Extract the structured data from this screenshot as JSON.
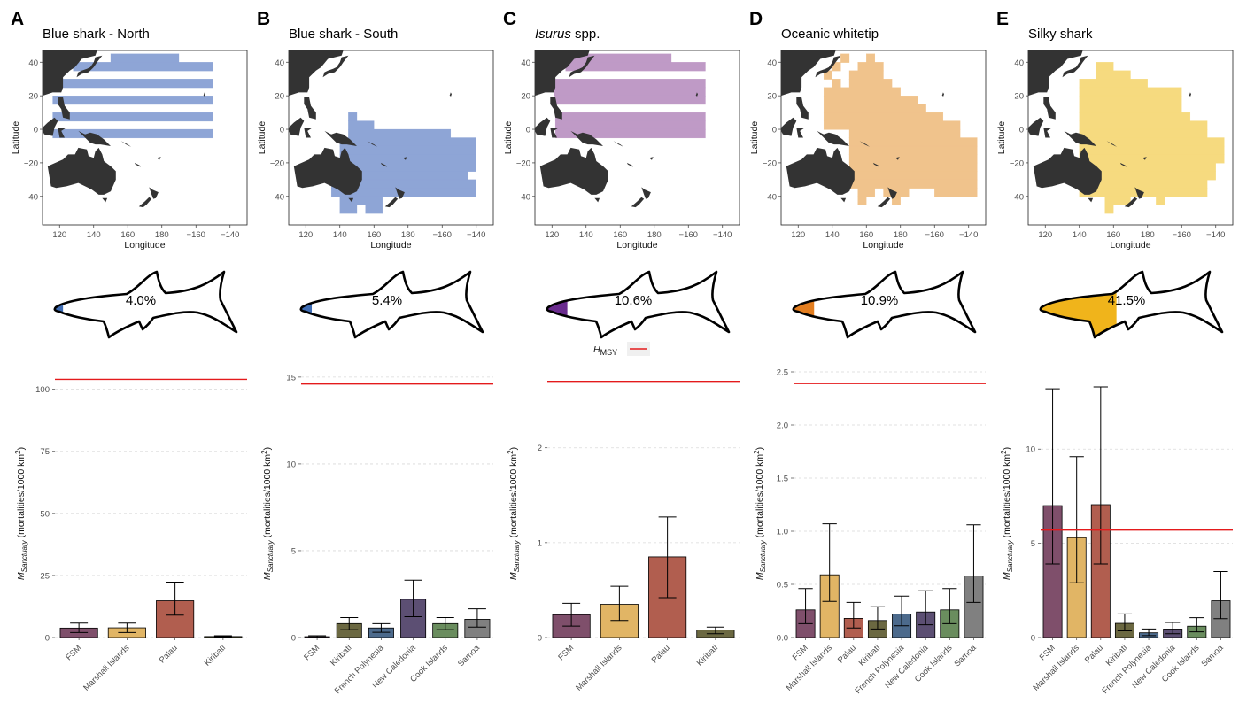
{
  "colors": {
    "land": "#333333",
    "blue": "#8ea5d6",
    "purple": "#bf9ac6",
    "orange": "#f0c38c",
    "gold": "#f6da7f",
    "hmsy": "#e41a1c",
    "fill_blue": "#3f6db5",
    "fill_purple": "#6a2c8e",
    "fill_orange": "#e27d1f",
    "fill_gold": "#f0b41b",
    "FSM": "#7f4f6b",
    "Marshall Islands": "#e1b565",
    "Palau": "#b15e4f",
    "Kiribati": "#6b6841",
    "French Polynesia": "#4c6a8c",
    "New Caledonia": "#5c4f73",
    "Cook Islands": "#6a8d5e",
    "Samoa": "#808080"
  },
  "legend": {
    "label_main": "H",
    "label_sub": "MSY"
  },
  "map_axes": {
    "xlabel": "Longitude",
    "ylabel": "Latitude",
    "x_ticks": [
      "120",
      "140",
      "160",
      "180",
      "−160",
      "−140"
    ],
    "y_ticks": [
      "40",
      "20",
      "0",
      "−20",
      "−40"
    ]
  },
  "y_axis_label": {
    "main": "M",
    "sub": "Sanctuary",
    "rest": " (mortalities/1000 km",
    "sup": "2",
    "close": ")"
  },
  "panels": [
    {
      "letter": "A",
      "title": "Blue shark - North",
      "title_italic": "",
      "title_rest": "",
      "map_color": "blue",
      "shark_fill": "fill_blue",
      "shark_fill_fraction": 0.04,
      "percentage": "4.0%",
      "chart_data": {
        "type": "bar",
        "categories": [
          "FSM",
          "Marshall Islands",
          "Palau",
          "Kiribati"
        ],
        "values": [
          3.8,
          3.9,
          14.8,
          0.4
        ],
        "err_low": [
          2.0,
          2.0,
          9.0,
          0.2
        ],
        "err_high": [
          5.8,
          5.8,
          22.3,
          0.7
        ],
        "hmsy": 104,
        "ylim": [
          0,
          107
        ],
        "y_ticks": [
          0,
          25,
          50,
          75,
          100
        ]
      }
    },
    {
      "letter": "B",
      "title": "Blue shark - South",
      "title_italic": "",
      "title_rest": "",
      "map_color": "blue",
      "shark_fill": "fill_blue",
      "shark_fill_fraction": 0.054,
      "percentage": "5.4%",
      "chart_data": {
        "type": "bar",
        "categories": [
          "FSM",
          "Kiribati",
          "French Polynesia",
          "New Caledonia",
          "Cook Islands",
          "Samoa"
        ],
        "values": [
          0.05,
          0.8,
          0.55,
          2.2,
          0.8,
          1.05
        ],
        "err_low": [
          0.0,
          0.45,
          0.3,
          1.2,
          0.45,
          0.6
        ],
        "err_high": [
          0.1,
          1.15,
          0.8,
          3.3,
          1.15,
          1.65
        ],
        "hmsy": 14.6,
        "ylim": [
          0,
          15.3
        ],
        "y_ticks": [
          0,
          5,
          10,
          15
        ]
      }
    },
    {
      "letter": "C",
      "title": "",
      "title_italic": "Isurus",
      "title_rest": " spp.",
      "map_color": "purple",
      "shark_fill": "fill_purple",
      "shark_fill_fraction": 0.106,
      "percentage": "10.6%",
      "chart_data": {
        "type": "bar",
        "categories": [
          "FSM",
          "Marshall Islands",
          "Palau",
          "Kiribati"
        ],
        "values": [
          0.24,
          0.35,
          0.85,
          0.08
        ],
        "err_low": [
          0.12,
          0.18,
          0.42,
          0.04
        ],
        "err_high": [
          0.36,
          0.54,
          1.27,
          0.11
        ],
        "hmsy": 2.7,
        "ylim": [
          0,
          2.8
        ],
        "y_ticks": [
          0,
          1,
          2
        ]
      }
    },
    {
      "letter": "D",
      "title": "Oceanic whitetip",
      "title_italic": "",
      "title_rest": "",
      "map_color": "orange",
      "shark_fill": "fill_orange",
      "shark_fill_fraction": 0.109,
      "percentage": "10.9%",
      "chart_data": {
        "type": "bar",
        "categories": [
          "FSM",
          "Marshall Islands",
          "Palau",
          "Kiribati",
          "French Polynesia",
          "New Caledonia",
          "Cook Islands",
          "Samoa"
        ],
        "values": [
          0.26,
          0.59,
          0.18,
          0.16,
          0.22,
          0.24,
          0.26,
          0.58
        ],
        "err_low": [
          0.13,
          0.34,
          0.09,
          0.08,
          0.11,
          0.12,
          0.13,
          0.33
        ],
        "err_high": [
          0.46,
          1.07,
          0.33,
          0.29,
          0.39,
          0.44,
          0.46,
          1.06
        ],
        "hmsy": 2.39,
        "ylim": [
          0,
          2.5
        ],
        "y_ticks": [
          0,
          0.5,
          1.0,
          1.5,
          2.0,
          2.5
        ],
        "y_tick_labels": [
          "0.0",
          "0.5",
          "1.0",
          "1.5",
          "2.0",
          "2.5"
        ]
      }
    },
    {
      "letter": "E",
      "title": "Silky shark",
      "title_italic": "",
      "title_rest": "",
      "map_color": "gold",
      "shark_fill": "fill_gold",
      "shark_fill_fraction": 0.415,
      "percentage": "41.5%",
      "chart_data": {
        "type": "bar",
        "categories": [
          "FSM",
          "Marshall Islands",
          "Palau",
          "Kiribati",
          "French Polynesia",
          "New Caledonia",
          "Cook Islands",
          "Samoa"
        ],
        "values": [
          7.0,
          5.3,
          7.05,
          0.75,
          0.25,
          0.45,
          0.6,
          1.95
        ],
        "err_low": [
          3.9,
          2.9,
          3.9,
          0.35,
          0.1,
          0.2,
          0.3,
          1.0
        ],
        "err_high": [
          13.2,
          9.6,
          13.3,
          1.25,
          0.45,
          0.8,
          1.05,
          3.5
        ],
        "hmsy": 5.7,
        "ylim": [
          0,
          14.1
        ],
        "y_ticks": [
          0,
          5,
          10
        ]
      }
    }
  ]
}
